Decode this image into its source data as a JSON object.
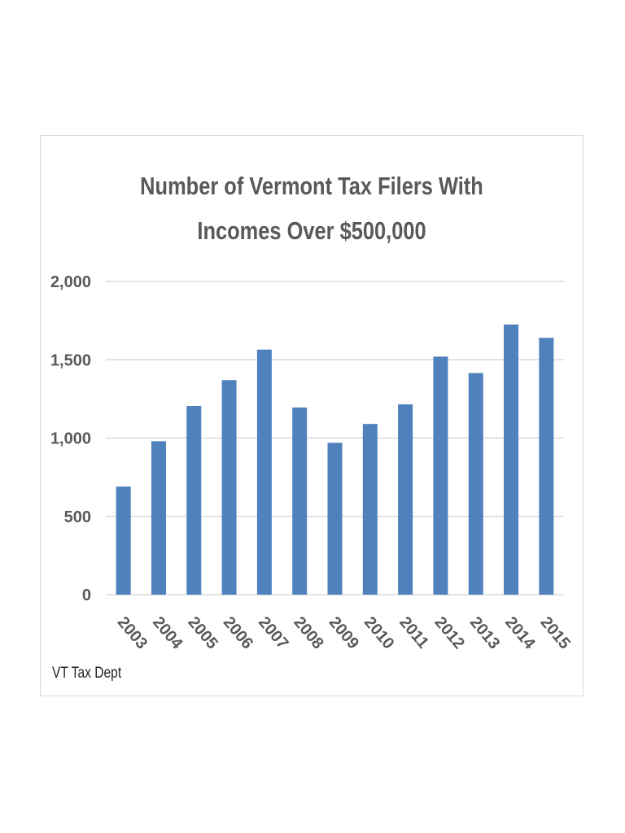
{
  "chart_data": {
    "type": "bar",
    "title_lines": [
      "Number of Vermont Tax Filers With",
      "Incomes Over $500,000"
    ],
    "categories": [
      "2003",
      "2004",
      "2005",
      "2006",
      "2007",
      "2008",
      "2009",
      "2010",
      "2011",
      "2012",
      "2013",
      "2014",
      "2015"
    ],
    "values": [
      690,
      980,
      1205,
      1370,
      1565,
      1195,
      970,
      1090,
      1215,
      1520,
      1415,
      1725,
      1640
    ],
    "ylim": [
      0,
      2000
    ],
    "yticks": [
      0,
      500,
      1000,
      1500,
      2000
    ],
    "ytick_labels": [
      "0",
      "500",
      "1,000",
      "1,500",
      "2,000"
    ],
    "xlabel": "",
    "ylabel": "",
    "grid": true,
    "legend": "none",
    "bar_color": "#4f81bd",
    "grid_color": "#d9d9d9",
    "text_color": "#595959"
  },
  "source_note": "VT Tax Dept"
}
